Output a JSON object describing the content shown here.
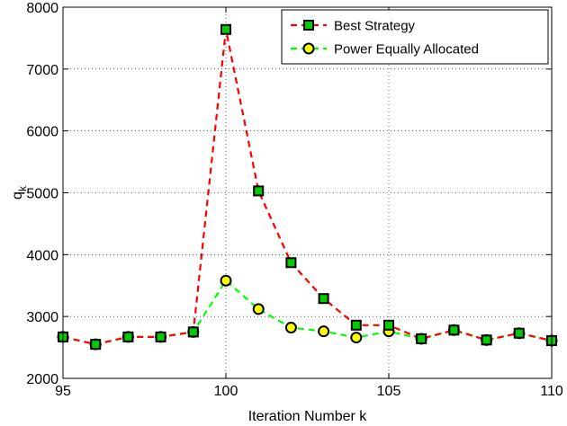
{
  "chart_data": {
    "type": "line",
    "xlabel": "Iteration Number k",
    "ylabel": "q",
    "ylabel_subscript": "k",
    "xlim": [
      95,
      110
    ],
    "ylim": [
      2000,
      8000
    ],
    "xticks": [
      95,
      100,
      105,
      110
    ],
    "yticks": [
      2000,
      3000,
      4000,
      5000,
      6000,
      7000,
      8000
    ],
    "grid": true,
    "legend_position": "top-right",
    "x": [
      95,
      96,
      97,
      98,
      99,
      100,
      101,
      102,
      103,
      104,
      105,
      106,
      107,
      108,
      109,
      110
    ],
    "series": [
      {
        "name": "Best Strategy",
        "color": "#ff0000",
        "marker": "square",
        "marker_fill": "#00cc00",
        "values": [
          2670,
          2550,
          2670,
          2670,
          2750,
          7640,
          5030,
          3870,
          3290,
          2860,
          2860,
          2640,
          2780,
          2620,
          2730,
          2610
        ]
      },
      {
        "name": "Power Equally Allocated",
        "color": "#00ff00",
        "marker": "circle",
        "marker_fill": "#ffff00",
        "values": [
          2670,
          2550,
          2670,
          2670,
          2750,
          3580,
          3120,
          2820,
          2760,
          2660,
          2760,
          2640,
          2780,
          2620,
          2730,
          2610
        ]
      }
    ]
  }
}
